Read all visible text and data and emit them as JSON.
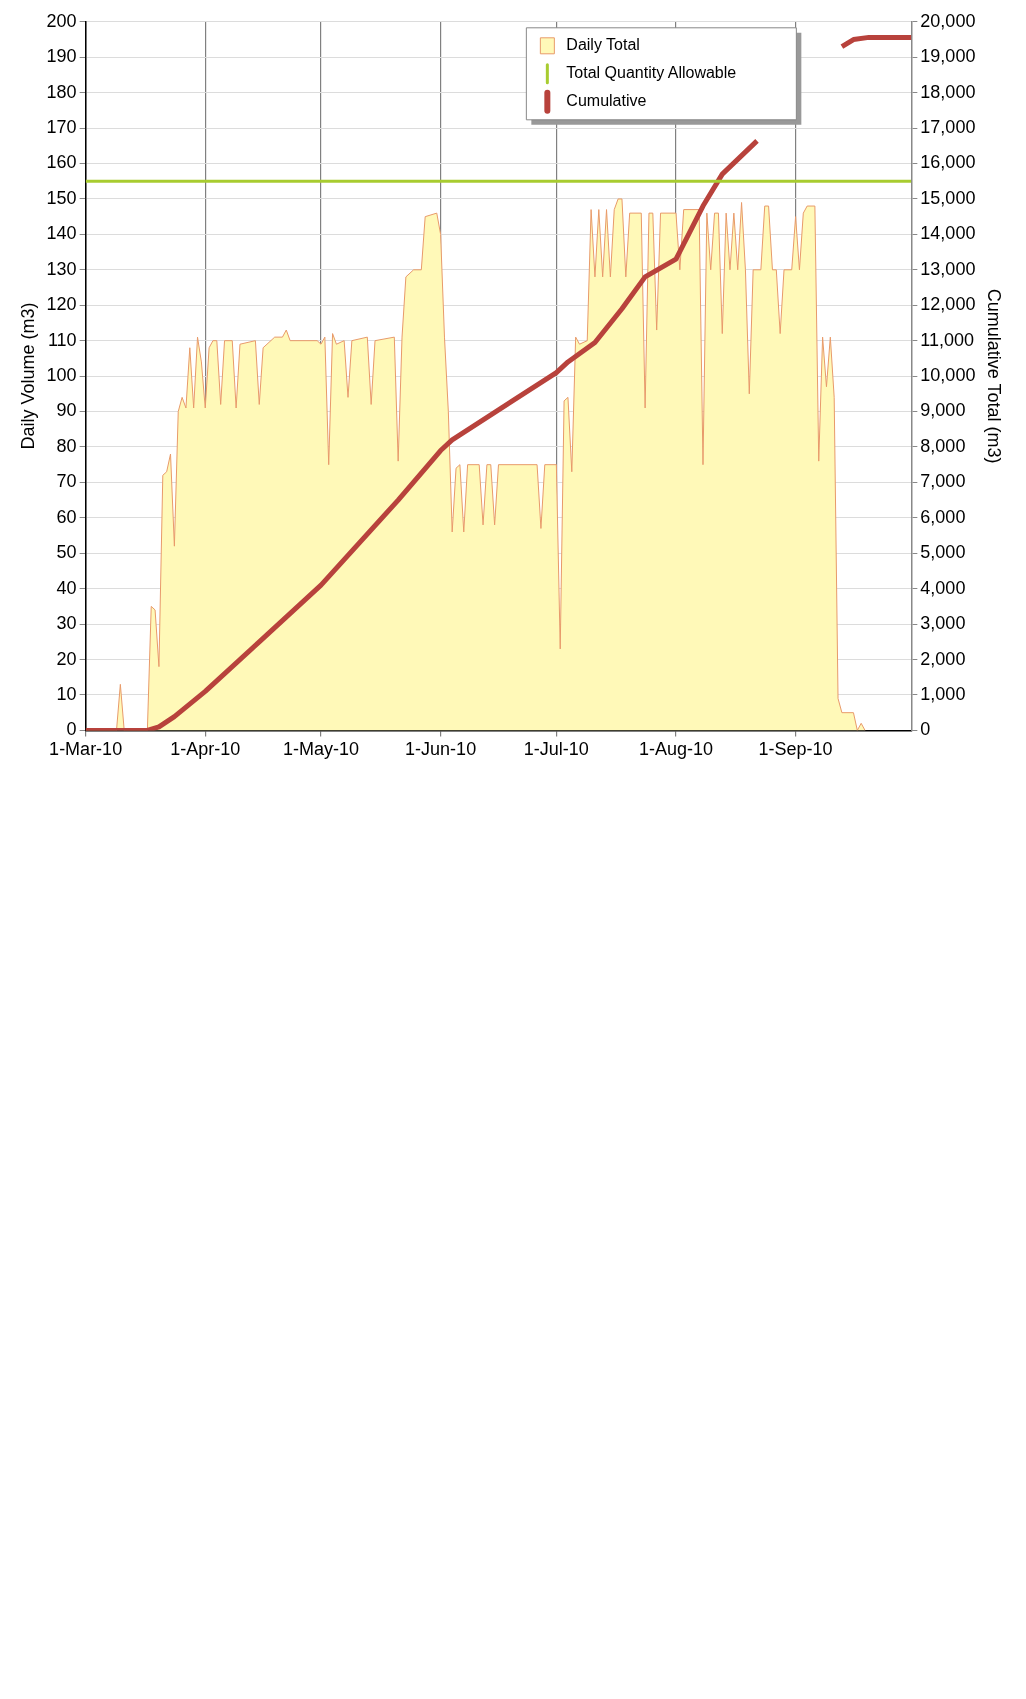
{
  "chart_data": {
    "type": "area",
    "ylabel": "Daily Volume (m3)",
    "y2label": "Cumulative Total (m3)",
    "xlim": [
      "2010-03-01",
      "2010-10-01"
    ],
    "xticks": [
      {
        "value": "2010-03-01",
        "label": "1-Mar-10"
      },
      {
        "value": "2010-04-01",
        "label": "1-Apr-10"
      },
      {
        "value": "2010-05-01",
        "label": "1-May-10"
      },
      {
        "value": "2010-06-01",
        "label": "1-Jun-10"
      },
      {
        "value": "2010-07-01",
        "label": "1-Jul-10"
      },
      {
        "value": "2010-08-01",
        "label": "1-Aug-10"
      },
      {
        "value": "2010-09-01",
        "label": "1-Sep-10"
      }
    ],
    "ylim": [
      0,
      200
    ],
    "yticks": [
      0,
      10,
      20,
      30,
      40,
      50,
      60,
      70,
      80,
      90,
      100,
      110,
      120,
      130,
      140,
      150,
      160,
      170,
      180,
      190,
      200
    ],
    "y2lim": [
      0,
      20000
    ],
    "y2ticks": [
      0,
      {
        "value": 1000,
        "label": "1,000"
      },
      {
        "value": 2000,
        "label": "2,000"
      },
      {
        "value": 3000,
        "label": "3,000"
      },
      {
        "value": 4000,
        "label": "4,000"
      },
      {
        "value": 5000,
        "label": "5,000"
      },
      {
        "value": 6000,
        "label": "6,000"
      },
      {
        "value": 7000,
        "label": "7,000"
      },
      {
        "value": 8000,
        "label": "8,000"
      },
      {
        "value": 9000,
        "label": "9,000"
      },
      {
        "value": 10000,
        "label": "10,000"
      },
      {
        "value": 11000,
        "label": "11,000"
      },
      {
        "value": 12000,
        "label": "12,000"
      },
      {
        "value": 13000,
        "label": "13,000"
      },
      {
        "value": 14000,
        "label": "14,000"
      },
      {
        "value": 15000,
        "label": "15,000"
      },
      {
        "value": 16000,
        "label": "16,000"
      },
      {
        "value": 17000,
        "label": "17,000"
      },
      {
        "value": 18000,
        "label": "18,000"
      },
      {
        "value": 19000,
        "label": "19,000"
      },
      {
        "value": 20000,
        "label": "20,000"
      }
    ],
    "grid": true,
    "legend": "top right",
    "series": [
      {
        "name": "Daily Total",
        "color": "#fff9b8",
        "x": [
          "2010-03-01",
          "2010-03-09",
          "2010-03-10",
          "2010-03-11",
          "2010-03-17",
          "2010-03-18",
          "2010-03-19",
          "2010-03-20",
          "2010-03-21",
          "2010-03-22",
          "2010-03-23",
          "2010-03-24",
          "2010-03-25",
          "2010-03-26",
          "2010-03-27",
          "2010-03-28",
          "2010-03-29",
          "2010-03-30",
          "2010-03-31",
          "2010-04-01",
          "2010-04-02",
          "2010-04-03",
          "2010-04-04",
          "2010-04-05",
          "2010-04-06",
          "2010-04-08",
          "2010-04-09",
          "2010-04-10",
          "2010-04-14",
          "2010-04-15",
          "2010-04-16",
          "2010-04-17",
          "2010-04-19",
          "2010-04-21",
          "2010-04-22",
          "2010-04-23",
          "2010-04-30",
          "2010-05-01",
          "2010-05-02",
          "2010-05-03",
          "2010-05-04",
          "2010-05-05",
          "2010-05-07",
          "2010-05-08",
          "2010-05-09",
          "2010-05-13",
          "2010-05-14",
          "2010-05-15",
          "2010-05-20",
          "2010-05-21",
          "2010-05-22",
          "2010-05-23",
          "2010-05-25",
          "2010-05-27",
          "2010-05-28",
          "2010-05-31",
          "2010-06-01",
          "2010-06-02",
          "2010-06-03",
          "2010-06-04",
          "2010-06-05",
          "2010-06-06",
          "2010-06-07",
          "2010-06-08",
          "2010-06-11",
          "2010-06-12",
          "2010-06-13",
          "2010-06-14",
          "2010-06-15",
          "2010-06-16",
          "2010-06-26",
          "2010-06-27",
          "2010-06-28",
          "2010-07-01",
          "2010-07-02",
          "2010-07-03",
          "2010-07-04",
          "2010-07-05",
          "2010-07-06",
          "2010-07-07",
          "2010-07-09",
          "2010-07-10",
          "2010-07-11",
          "2010-07-12",
          "2010-07-13",
          "2010-07-14",
          "2010-07-15",
          "2010-07-16",
          "2010-07-17",
          "2010-07-18",
          "2010-07-19",
          "2010-07-20",
          "2010-07-23",
          "2010-07-24",
          "2010-07-25",
          "2010-07-26",
          "2010-07-27",
          "2010-07-28",
          "2010-08-01",
          "2010-08-02",
          "2010-08-03",
          "2010-08-07",
          "2010-08-08",
          "2010-08-09",
          "2010-08-10",
          "2010-08-11",
          "2010-08-12",
          "2010-08-13",
          "2010-08-14",
          "2010-08-15",
          "2010-08-16",
          "2010-08-17",
          "2010-08-18",
          "2010-08-19",
          "2010-08-20",
          "2010-08-21",
          "2010-08-23",
          "2010-08-24",
          "2010-08-25",
          "2010-08-26",
          "2010-08-27",
          "2010-08-28",
          "2010-08-29",
          "2010-08-31",
          "2010-09-01",
          "2010-09-02",
          "2010-09-03",
          "2010-09-04",
          "2010-09-06",
          "2010-09-07",
          "2010-09-08",
          "2010-09-09",
          "2010-09-10",
          "2010-09-11",
          "2010-09-12",
          "2010-09-13",
          "2010-09-16",
          "2010-09-17",
          "2010-09-18",
          "2010-09-19"
        ],
        "values": [
          0,
          0,
          13,
          0,
          0,
          35,
          34,
          18,
          72,
          73,
          78,
          52,
          90,
          94,
          91,
          108,
          91,
          111,
          104,
          91,
          108,
          110,
          110,
          92,
          110,
          110,
          91,
          109,
          110,
          92,
          108,
          109,
          111,
          111,
          113,
          110,
          110,
          109,
          111,
          75,
          112,
          109,
          110,
          94,
          110,
          111,
          92,
          110,
          111,
          76,
          111,
          128,
          130,
          130,
          145,
          146,
          140,
          111,
          90,
          56,
          74,
          75,
          56,
          75,
          75,
          58,
          75,
          75,
          58,
          75,
          75,
          57,
          75,
          75,
          23,
          93,
          94,
          73,
          111,
          109,
          110,
          147,
          128,
          147,
          128,
          147,
          128,
          147,
          150,
          150,
          128,
          146,
          146,
          91,
          146,
          146,
          113,
          146,
          146,
          130,
          147,
          147,
          75,
          146,
          130,
          146,
          146,
          112,
          146,
          130,
          146,
          130,
          149,
          130,
          95,
          130,
          130,
          148,
          148,
          130,
          130,
          112,
          130,
          130,
          145,
          130,
          146,
          148,
          148,
          76,
          111,
          97,
          111,
          94,
          9,
          5,
          5,
          0,
          2,
          0
        ]
      },
      {
        "name": "Total Quantity Allowable",
        "type": "line",
        "color": "#a8cc30",
        "x": [
          "2010-03-01",
          "2010-10-01"
        ],
        "values": [
          155,
          155
        ]
      },
      {
        "name": "Cumulative",
        "type": "line",
        "axis": "y2",
        "color": "#b8423c",
        "x": [
          "2010-03-01",
          "2010-03-17",
          "2010-03-20",
          "2010-03-24",
          "2010-04-01",
          "2010-04-15",
          "2010-05-01",
          "2010-05-21",
          "2010-06-01",
          "2010-06-04",
          "2010-07-01",
          "2010-07-04",
          "2010-07-11",
          "2010-07-18",
          "2010-07-24",
          "2010-08-01",
          "2010-08-08",
          "2010-08-13",
          "2010-08-22",
          "2010-08-23",
          "2010-09-13",
          "2010-09-16",
          "2010-09-20",
          "2010-10-01"
        ],
        "values": [
          0,
          0,
          100,
          390,
          1100,
          2500,
          4100,
          6500,
          7900,
          8200,
          10100,
          10400,
          10950,
          11900,
          12800,
          13300,
          14800,
          15700,
          16640,
          null,
          19300,
          19500,
          19560,
          19560
        ]
      }
    ]
  }
}
